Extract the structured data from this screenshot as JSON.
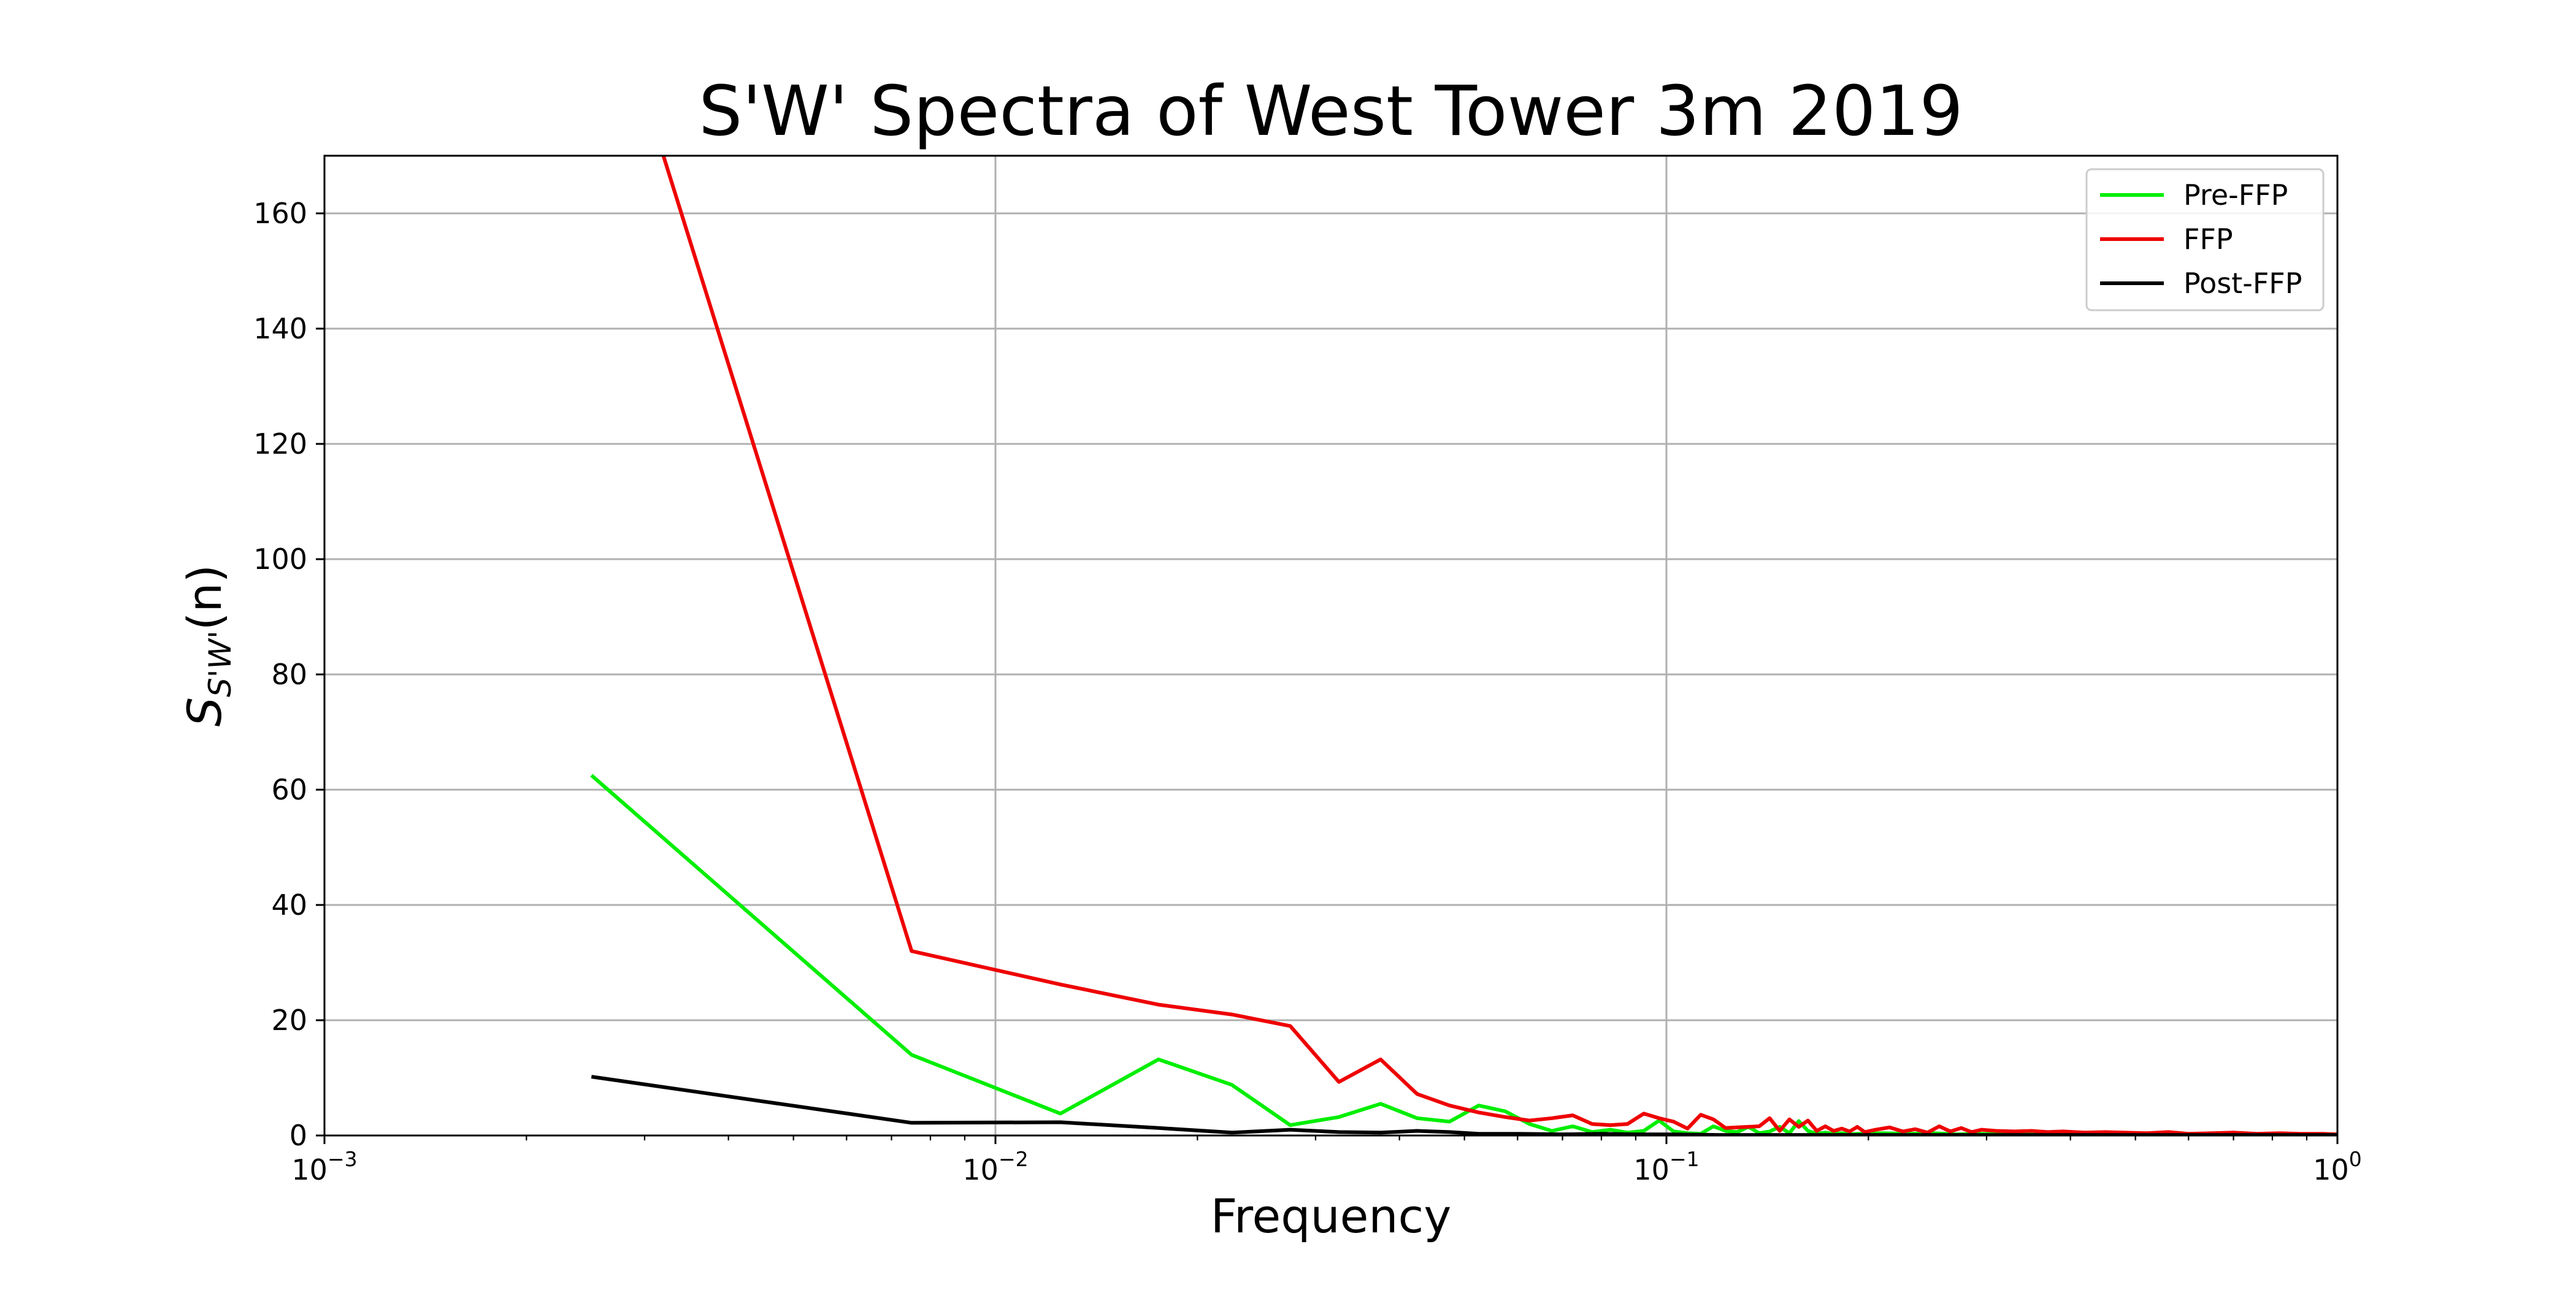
{
  "chart_data": {
    "type": "line",
    "title": "S'W' Spectra of West Tower 3m 2019",
    "xlabel": "Frequency",
    "ylabel": {
      "base": "S",
      "sub": "S'W'",
      "suffix": "(n)"
    },
    "xscale": "log",
    "xlim": [
      0.001,
      1
    ],
    "ylim": [
      0,
      170
    ],
    "grid": true,
    "legend_position": "top-right",
    "x_ticks": [
      {
        "value": 0.001,
        "base": "10",
        "exp": "−3"
      },
      {
        "value": 0.01,
        "base": "10",
        "exp": "−2"
      },
      {
        "value": 0.1,
        "base": "10",
        "exp": "−1"
      },
      {
        "value": 1,
        "base": "10",
        "exp": "0"
      }
    ],
    "y_ticks": [
      0,
      20,
      40,
      60,
      80,
      100,
      120,
      140,
      160
    ],
    "series": [
      {
        "name": "Pre-FFP",
        "color": "#00ee00",
        "x": [
          0.0025,
          0.0075,
          0.0125,
          0.0175,
          0.0225,
          0.0275,
          0.0325,
          0.0375,
          0.0425,
          0.0475,
          0.0525,
          0.0575,
          0.0625,
          0.0675,
          0.0725,
          0.0775,
          0.0825,
          0.0875,
          0.0925,
          0.0975,
          0.1025,
          0.1075,
          0.1125,
          0.1175,
          0.1225,
          0.1275,
          0.1325,
          0.1375,
          0.1425,
          0.1475,
          0.1525,
          0.1575,
          0.1625,
          0.1675,
          0.1725,
          0.1775,
          0.1825,
          0.1875,
          0.1925,
          0.1975,
          0.21,
          0.23,
          0.25,
          0.27,
          0.29,
          0.32,
          0.36,
          0.4,
          0.45,
          0.5,
          0.56,
          0.62,
          0.7,
          0.78,
          0.86,
          0.95,
          1.0
        ],
        "y": [
          62.5,
          14.0,
          3.8,
          13.2,
          8.8,
          1.8,
          3.2,
          5.5,
          3.0,
          2.4,
          5.2,
          4.2,
          2.0,
          0.8,
          1.6,
          0.6,
          1.0,
          0.5,
          0.8,
          2.6,
          0.7,
          0.4,
          0.3,
          1.6,
          0.8,
          0.6,
          1.5,
          0.4,
          0.7,
          1.5,
          0.4,
          2.5,
          0.8,
          0.3,
          0.5,
          0.3,
          0.4,
          0.2,
          0.3,
          0.3,
          0.4,
          0.3,
          0.4,
          0.2,
          0.3,
          0.2,
          0.2,
          0.2,
          0.1,
          0.2,
          0.1,
          0.1,
          0.1,
          0.1,
          0.1,
          0.1,
          0.1
        ]
      },
      {
        "name": "FFP",
        "color": "#ee0000",
        "x": [
          0.0025,
          0.0075,
          0.0125,
          0.0175,
          0.0225,
          0.0275,
          0.0325,
          0.0375,
          0.0425,
          0.0475,
          0.0525,
          0.0575,
          0.0625,
          0.0675,
          0.0725,
          0.0775,
          0.0825,
          0.0875,
          0.0925,
          0.0975,
          0.1025,
          0.1075,
          0.1125,
          0.1175,
          0.1225,
          0.1275,
          0.1325,
          0.1375,
          0.1425,
          0.1475,
          0.1525,
          0.1575,
          0.1625,
          0.1675,
          0.1725,
          0.1775,
          0.1825,
          0.1875,
          0.1925,
          0.1975,
          0.205,
          0.215,
          0.225,
          0.235,
          0.245,
          0.255,
          0.265,
          0.275,
          0.285,
          0.295,
          0.31,
          0.33,
          0.35,
          0.37,
          0.39,
          0.42,
          0.45,
          0.48,
          0.52,
          0.56,
          0.6,
          0.65,
          0.7,
          0.76,
          0.82,
          0.88,
          0.95,
          1.0
        ],
        "y": [
          210.0,
          32.0,
          26.2,
          22.7,
          21.0,
          19.0,
          9.3,
          13.2,
          7.2,
          5.2,
          4.0,
          3.2,
          2.6,
          3.0,
          3.5,
          2.0,
          1.8,
          2.0,
          3.8,
          3.0,
          2.4,
          1.2,
          3.6,
          2.8,
          1.3,
          1.4,
          1.5,
          1.6,
          3.0,
          0.8,
          2.8,
          1.5,
          2.6,
          0.8,
          1.6,
          0.8,
          1.2,
          0.7,
          1.5,
          0.6,
          1.0,
          1.4,
          0.7,
          1.1,
          0.5,
          1.6,
          0.7,
          1.3,
          0.6,
          1.0,
          0.8,
          0.7,
          0.8,
          0.6,
          0.7,
          0.5,
          0.6,
          0.5,
          0.4,
          0.6,
          0.3,
          0.4,
          0.5,
          0.3,
          0.4,
          0.3,
          0.3,
          0.2
        ]
      },
      {
        "name": "Post-FFP",
        "color": "#000000",
        "x": [
          0.0025,
          0.0075,
          0.0125,
          0.0175,
          0.0225,
          0.0275,
          0.0325,
          0.0375,
          0.0425,
          0.0475,
          0.0525,
          0.06,
          0.07,
          0.08,
          0.09,
          0.1,
          0.12,
          0.15,
          0.2,
          0.3,
          0.5,
          0.7,
          1.0
        ],
        "y": [
          10.2,
          2.2,
          2.3,
          1.3,
          0.5,
          1.0,
          0.6,
          0.5,
          0.8,
          0.6,
          0.3,
          0.3,
          0.2,
          0.3,
          0.2,
          0.2,
          0.1,
          0.1,
          0.1,
          0.1,
          0.1,
          0.1,
          0.1
        ]
      }
    ]
  }
}
